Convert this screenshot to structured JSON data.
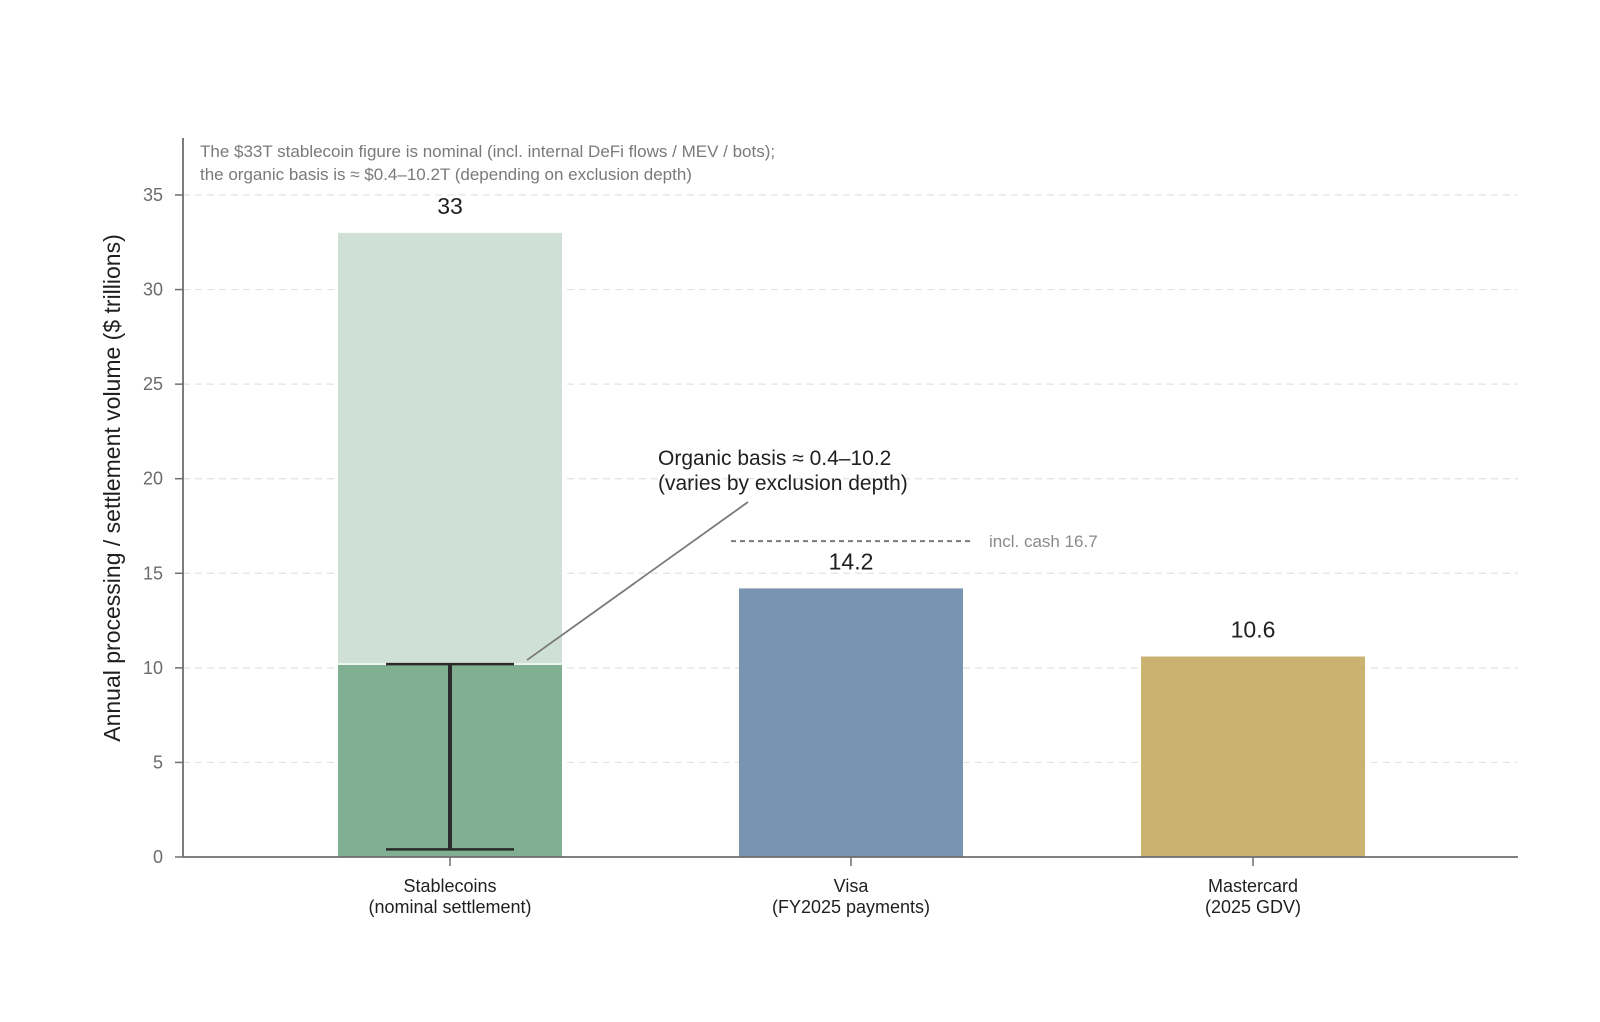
{
  "chart_data": {
    "type": "bar",
    "categories": [
      [
        "Stablecoins",
        "(nominal settlement)"
      ],
      [
        "Visa",
        "(FY2025 payments)"
      ],
      [
        "Mastercard",
        "(2025 GDV)"
      ]
    ],
    "values": [
      33,
      14.2,
      10.6
    ],
    "value_labels": [
      "33",
      "14.2",
      "10.6"
    ],
    "organic_basis": {
      "category_index": 0,
      "low": 0.4,
      "high": 10.2
    },
    "reference_line": {
      "category_index": 1,
      "value": 16.7,
      "label": "incl. cash 16.7"
    },
    "ylabel": "Annual processing / settlement volume ($ trillions)",
    "xlabel": "",
    "ylim": [
      0,
      38
    ],
    "yticks": [
      0,
      5,
      10,
      15,
      20,
      25,
      30,
      35
    ],
    "grid": true,
    "note": [
      "The $33T stablecoin figure is nominal (incl. internal DeFi flows / MEV / bots);",
      "the organic basis is ≈ $0.4–10.2T (depending on exclusion depth)"
    ],
    "annotation": [
      "Organic basis ≈ 0.4–10.2",
      "(varies by exclusion depth)"
    ],
    "colors": {
      "stablecoin_nominal": "#cfe0d6",
      "stablecoin_organic": "#80b091",
      "visa": "#7894b1",
      "mastercard": "#cbb270",
      "axis": "#6e6e6e",
      "grid": "#e3e3e3",
      "errorbar": "#2b2b2b",
      "annotation_line": "#7a7a7a",
      "reference_line": "#7a7a7a"
    }
  }
}
